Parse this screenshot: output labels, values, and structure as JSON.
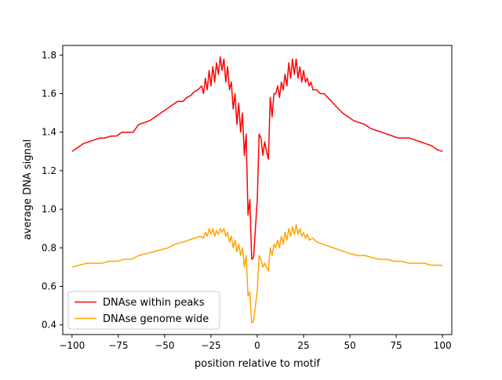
{
  "chart_data": {
    "type": "line",
    "xlabel": "position relative to motif",
    "ylabel": "average DNA signal",
    "xlim": [
      -105,
      105
    ],
    "ylim": [
      0.35,
      1.85
    ],
    "xticks": [
      -100,
      -75,
      -50,
      -25,
      0,
      25,
      50,
      75,
      100
    ],
    "xtick_labels": [
      "−100",
      "−75",
      "−50",
      "−25",
      "0",
      "25",
      "50",
      "75",
      "100"
    ],
    "yticks": [
      0.4,
      0.6,
      0.8,
      1.0,
      1.2,
      1.4,
      1.6,
      1.8
    ],
    "ytick_labels": [
      "0.4",
      "0.6",
      "0.8",
      "1.0",
      "1.2",
      "1.4",
      "1.6",
      "1.8"
    ],
    "grid": false,
    "legend_position": "lower-left",
    "series": [
      {
        "name": "DNAse within peaks",
        "color": "#ff0000",
        "points": [
          [
            -100,
            1.3
          ],
          [
            -97,
            1.32
          ],
          [
            -94,
            1.34
          ],
          [
            -91,
            1.35
          ],
          [
            -88,
            1.36
          ],
          [
            -85,
            1.37
          ],
          [
            -82,
            1.37
          ],
          [
            -79,
            1.38
          ],
          [
            -76,
            1.38
          ],
          [
            -73,
            1.4
          ],
          [
            -70,
            1.4
          ],
          [
            -67,
            1.4
          ],
          [
            -64,
            1.44
          ],
          [
            -61,
            1.45
          ],
          [
            -58,
            1.46
          ],
          [
            -55,
            1.48
          ],
          [
            -52,
            1.5
          ],
          [
            -49,
            1.52
          ],
          [
            -46,
            1.54
          ],
          [
            -43,
            1.56
          ],
          [
            -40,
            1.56
          ],
          [
            -38,
            1.58
          ],
          [
            -36,
            1.59
          ],
          [
            -34,
            1.61
          ],
          [
            -32,
            1.62
          ],
          [
            -30,
            1.64
          ],
          [
            -29,
            1.6
          ],
          [
            -28,
            1.68
          ],
          [
            -27,
            1.62
          ],
          [
            -26,
            1.72
          ],
          [
            -25,
            1.64
          ],
          [
            -24,
            1.74
          ],
          [
            -23,
            1.66
          ],
          [
            -22,
            1.76
          ],
          [
            -21,
            1.7
          ],
          [
            -20,
            1.79
          ],
          [
            -19,
            1.72
          ],
          [
            -18,
            1.78
          ],
          [
            -17,
            1.66
          ],
          [
            -16,
            1.74
          ],
          [
            -15,
            1.62
          ],
          [
            -14,
            1.66
          ],
          [
            -13,
            1.52
          ],
          [
            -12,
            1.6
          ],
          [
            -11,
            1.44
          ],
          [
            -10,
            1.55
          ],
          [
            -9,
            1.4
          ],
          [
            -8,
            1.5
          ],
          [
            -7,
            1.28
          ],
          [
            -6,
            1.39
          ],
          [
            -5,
            0.97
          ],
          [
            -4,
            1.05
          ],
          [
            -3,
            0.74
          ],
          [
            -2,
            0.75
          ],
          [
            -1,
            0.9
          ],
          [
            0,
            1.05
          ],
          [
            1,
            1.39
          ],
          [
            2,
            1.37
          ],
          [
            3,
            1.28
          ],
          [
            4,
            1.35
          ],
          [
            5,
            1.3
          ],
          [
            6,
            1.26
          ],
          [
            7,
            1.58
          ],
          [
            8,
            1.48
          ],
          [
            9,
            1.6
          ],
          [
            10,
            1.6
          ],
          [
            11,
            1.64
          ],
          [
            12,
            1.58
          ],
          [
            13,
            1.66
          ],
          [
            14,
            1.62
          ],
          [
            15,
            1.7
          ],
          [
            16,
            1.64
          ],
          [
            17,
            1.76
          ],
          [
            18,
            1.68
          ],
          [
            19,
            1.78
          ],
          [
            20,
            1.7
          ],
          [
            21,
            1.78
          ],
          [
            22,
            1.68
          ],
          [
            23,
            1.74
          ],
          [
            24,
            1.66
          ],
          [
            25,
            1.72
          ],
          [
            26,
            1.66
          ],
          [
            27,
            1.68
          ],
          [
            28,
            1.64
          ],
          [
            29,
            1.66
          ],
          [
            30,
            1.62
          ],
          [
            32,
            1.62
          ],
          [
            34,
            1.6
          ],
          [
            36,
            1.6
          ],
          [
            38,
            1.58
          ],
          [
            40,
            1.56
          ],
          [
            43,
            1.53
          ],
          [
            46,
            1.5
          ],
          [
            49,
            1.48
          ],
          [
            52,
            1.46
          ],
          [
            55,
            1.45
          ],
          [
            58,
            1.44
          ],
          [
            61,
            1.42
          ],
          [
            64,
            1.41
          ],
          [
            67,
            1.4
          ],
          [
            70,
            1.39
          ],
          [
            73,
            1.38
          ],
          [
            76,
            1.37
          ],
          [
            79,
            1.37
          ],
          [
            82,
            1.37
          ],
          [
            85,
            1.36
          ],
          [
            88,
            1.35
          ],
          [
            91,
            1.34
          ],
          [
            94,
            1.33
          ],
          [
            97,
            1.31
          ],
          [
            100,
            1.3
          ]
        ]
      },
      {
        "name": "DNAse genome wide",
        "color": "#ffa500",
        "points": [
          [
            -100,
            0.7
          ],
          [
            -96,
            0.71
          ],
          [
            -92,
            0.72
          ],
          [
            -88,
            0.72
          ],
          [
            -84,
            0.72
          ],
          [
            -80,
            0.73
          ],
          [
            -76,
            0.73
          ],
          [
            -72,
            0.74
          ],
          [
            -68,
            0.74
          ],
          [
            -64,
            0.76
          ],
          [
            -60,
            0.77
          ],
          [
            -56,
            0.78
          ],
          [
            -52,
            0.79
          ],
          [
            -48,
            0.8
          ],
          [
            -44,
            0.82
          ],
          [
            -40,
            0.83
          ],
          [
            -37,
            0.84
          ],
          [
            -34,
            0.85
          ],
          [
            -31,
            0.86
          ],
          [
            -29,
            0.85
          ],
          [
            -28,
            0.88
          ],
          [
            -27,
            0.86
          ],
          [
            -26,
            0.9
          ],
          [
            -25,
            0.87
          ],
          [
            -24,
            0.9
          ],
          [
            -23,
            0.86
          ],
          [
            -22,
            0.89
          ],
          [
            -21,
            0.87
          ],
          [
            -20,
            0.9
          ],
          [
            -19,
            0.88
          ],
          [
            -18,
            0.9
          ],
          [
            -17,
            0.86
          ],
          [
            -16,
            0.88
          ],
          [
            -15,
            0.83
          ],
          [
            -14,
            0.86
          ],
          [
            -13,
            0.8
          ],
          [
            -12,
            0.84
          ],
          [
            -11,
            0.78
          ],
          [
            -10,
            0.82
          ],
          [
            -9,
            0.76
          ],
          [
            -8,
            0.8
          ],
          [
            -7,
            0.7
          ],
          [
            -6,
            0.76
          ],
          [
            -5,
            0.55
          ],
          [
            -4,
            0.57
          ],
          [
            -3,
            0.41
          ],
          [
            -2,
            0.42
          ],
          [
            -1,
            0.5
          ],
          [
            0,
            0.58
          ],
          [
            1,
            0.76
          ],
          [
            2,
            0.74
          ],
          [
            3,
            0.7
          ],
          [
            4,
            0.72
          ],
          [
            5,
            0.7
          ],
          [
            6,
            0.68
          ],
          [
            7,
            0.8
          ],
          [
            8,
            0.76
          ],
          [
            9,
            0.82
          ],
          [
            10,
            0.8
          ],
          [
            11,
            0.84
          ],
          [
            12,
            0.8
          ],
          [
            13,
            0.86
          ],
          [
            14,
            0.82
          ],
          [
            15,
            0.88
          ],
          [
            16,
            0.84
          ],
          [
            17,
            0.9
          ],
          [
            18,
            0.86
          ],
          [
            19,
            0.91
          ],
          [
            20,
            0.87
          ],
          [
            21,
            0.92
          ],
          [
            22,
            0.87
          ],
          [
            23,
            0.9
          ],
          [
            24,
            0.86
          ],
          [
            25,
            0.88
          ],
          [
            26,
            0.85
          ],
          [
            27,
            0.87
          ],
          [
            28,
            0.84
          ],
          [
            30,
            0.85
          ],
          [
            32,
            0.83
          ],
          [
            35,
            0.82
          ],
          [
            38,
            0.81
          ],
          [
            41,
            0.8
          ],
          [
            44,
            0.79
          ],
          [
            47,
            0.78
          ],
          [
            50,
            0.77
          ],
          [
            54,
            0.76
          ],
          [
            58,
            0.76
          ],
          [
            62,
            0.75
          ],
          [
            66,
            0.74
          ],
          [
            70,
            0.74
          ],
          [
            74,
            0.73
          ],
          [
            78,
            0.73
          ],
          [
            82,
            0.72
          ],
          [
            86,
            0.72
          ],
          [
            90,
            0.72
          ],
          [
            94,
            0.71
          ],
          [
            97,
            0.71
          ],
          [
            100,
            0.71
          ]
        ]
      }
    ]
  }
}
